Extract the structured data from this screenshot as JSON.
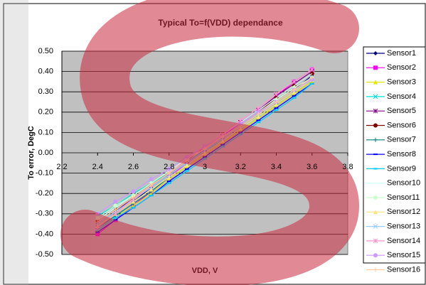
{
  "chart_data": {
    "type": "line",
    "title": "Typical To=f(VDD) dependance",
    "xlabel": "VDD, V",
    "ylabel": "To error, DegC",
    "x": [
      2.4,
      2.5,
      2.6,
      2.7,
      2.8,
      2.9,
      3.0,
      3.1,
      3.2,
      3.3,
      3.4,
      3.5,
      3.6
    ],
    "xlim": [
      2.2,
      3.8
    ],
    "xticks": [
      2.2,
      2.4,
      2.6,
      2.8,
      3.0,
      3.2,
      3.4,
      3.6,
      3.8
    ],
    "ylim": [
      -0.5,
      0.5
    ],
    "yticks": [
      {
        "value": -0.5,
        "label": "-0.50"
      },
      {
        "value": -0.4,
        "label": "-0.40"
      },
      {
        "value": -0.3,
        "label": "-0.30"
      },
      {
        "value": -0.2,
        "label": "-0.20"
      },
      {
        "value": -0.1,
        "label": "-0.10"
      },
      {
        "value": 0,
        "label": "0.00"
      },
      {
        "value": 0.1,
        "label": "0.10"
      },
      {
        "value": 0.2,
        "label": "0.20"
      },
      {
        "value": 0.3,
        "label": "0.30"
      },
      {
        "value": 0.4,
        "label": "0.40"
      },
      {
        "value": 0.5,
        "label": "0.50"
      }
    ],
    "grid": true,
    "legend": "right",
    "series": [
      {
        "name": "Sensor1",
        "color": "#000080",
        "marker": "diamond",
        "values": [
          -0.36,
          -0.3,
          -0.24,
          -0.17,
          -0.11,
          -0.05,
          0.01,
          0.07,
          0.13,
          0.19,
          0.25,
          0.31,
          0.38
        ]
      },
      {
        "name": "Sensor2",
        "color": "#ff00ff",
        "marker": "square",
        "values": [
          -0.4,
          -0.33,
          -0.26,
          -0.19,
          -0.12,
          -0.05,
          0.02,
          0.08,
          0.15,
          0.21,
          0.28,
          0.35,
          0.41
        ]
      },
      {
        "name": "Sensor3",
        "color": "#e6e600",
        "marker": "triangle",
        "values": [
          -0.38,
          -0.32,
          -0.26,
          -0.2,
          -0.13,
          -0.07,
          -0.01,
          0.05,
          0.11,
          0.17,
          0.23,
          0.29,
          0.35
        ]
      },
      {
        "name": "Sensor4",
        "color": "#00e0e0",
        "marker": "x",
        "values": [
          -0.31,
          -0.26,
          -0.2,
          -0.15,
          -0.1,
          -0.04,
          0.01,
          0.06,
          0.12,
          0.18,
          0.24,
          0.3,
          0.36
        ]
      },
      {
        "name": "Sensor5",
        "color": "#800080",
        "marker": "star",
        "values": [
          -0.35,
          -0.29,
          -0.22,
          -0.16,
          -0.1,
          -0.04,
          0.03,
          0.09,
          0.15,
          0.21,
          0.28,
          0.34,
          0.4
        ]
      },
      {
        "name": "Sensor6",
        "color": "#800000",
        "marker": "circle",
        "values": [
          -0.34,
          -0.28,
          -0.22,
          -0.16,
          -0.1,
          -0.04,
          0.02,
          0.08,
          0.14,
          0.2,
          0.27,
          0.33,
          0.39
        ]
      },
      {
        "name": "Sensor7",
        "color": "#008080",
        "marker": "plus",
        "values": [
          -0.37,
          -0.31,
          -0.25,
          -0.19,
          -0.12,
          -0.06,
          0.0,
          0.06,
          0.12,
          0.18,
          0.24,
          0.3,
          0.36
        ]
      },
      {
        "name": "Sensor8",
        "color": "#0000ff",
        "marker": "dash",
        "values": [
          -0.39,
          -0.33,
          -0.27,
          -0.21,
          -0.14,
          -0.08,
          -0.02,
          0.04,
          0.1,
          0.16,
          0.22,
          0.28,
          0.34
        ]
      },
      {
        "name": "Sensor9",
        "color": "#00ccff",
        "marker": "dash",
        "values": [
          -0.38,
          -0.32,
          -0.27,
          -0.21,
          -0.15,
          -0.09,
          -0.03,
          0.03,
          0.09,
          0.15,
          0.21,
          0.27,
          0.34
        ]
      },
      {
        "name": "Sensor10",
        "color": "#ccffff",
        "marker": "none",
        "values": [
          -0.33,
          -0.27,
          -0.21,
          -0.15,
          -0.09,
          -0.03,
          0.03,
          0.09,
          0.15,
          0.21,
          0.27,
          0.33,
          0.39
        ]
      },
      {
        "name": "Sensor11",
        "color": "#ccffcc",
        "marker": "circle",
        "values": [
          -0.32,
          -0.26,
          -0.21,
          -0.15,
          -0.09,
          -0.03,
          0.02,
          0.08,
          0.14,
          0.2,
          0.26,
          0.32,
          0.37
        ]
      },
      {
        "name": "Sensor12",
        "color": "#ffe680",
        "marker": "triangle",
        "values": [
          -0.36,
          -0.3,
          -0.24,
          -0.18,
          -0.12,
          -0.06,
          0.0,
          0.06,
          0.12,
          0.18,
          0.24,
          0.3,
          0.36
        ]
      },
      {
        "name": "Sensor13",
        "color": "#99ccff",
        "marker": "x",
        "values": [
          -0.35,
          -0.29,
          -0.23,
          -0.17,
          -0.11,
          -0.05,
          0.01,
          0.07,
          0.13,
          0.19,
          0.25,
          0.31,
          0.37
        ]
      },
      {
        "name": "Sensor14",
        "color": "#ff99cc",
        "marker": "star",
        "values": [
          -0.37,
          -0.3,
          -0.23,
          -0.16,
          -0.1,
          -0.03,
          0.03,
          0.09,
          0.16,
          0.22,
          0.29,
          0.35,
          0.41
        ]
      },
      {
        "name": "Sensor15",
        "color": "#cc99ff",
        "marker": "circle",
        "values": [
          -0.3,
          -0.24,
          -0.19,
          -0.13,
          -0.08,
          -0.02,
          0.03,
          0.08,
          0.14,
          0.2,
          0.25,
          0.31,
          0.36
        ]
      },
      {
        "name": "Sensor16",
        "color": "#ffcc99",
        "marker": "plus",
        "values": [
          -0.34,
          -0.28,
          -0.22,
          -0.16,
          -0.1,
          -0.04,
          0.02,
          0.08,
          0.13,
          0.19,
          0.25,
          0.31,
          0.37
        ]
      }
    ]
  }
}
